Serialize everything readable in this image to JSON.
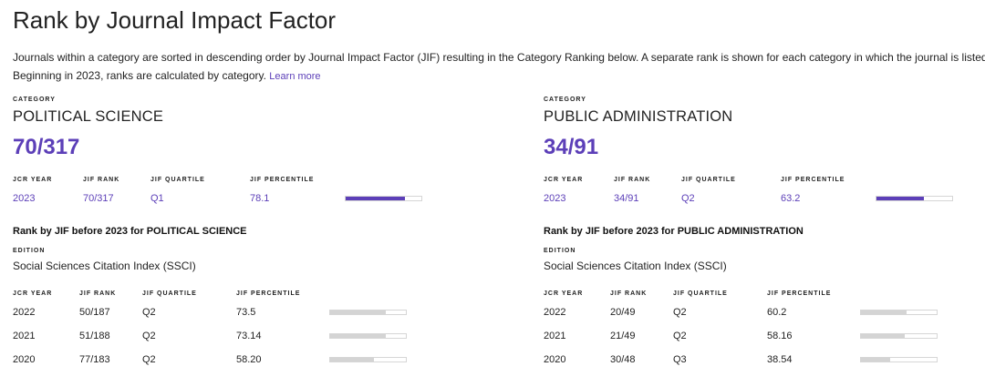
{
  "page": {
    "title": "Rank by Journal Impact Factor",
    "intro_line1": "Journals within a category are sorted in descending order by Journal Impact Factor (JIF) resulting in the Category Ranking below. A separate rank is shown for each category in which the journal is listed in J",
    "intro_line2": "Beginning in 2023, ranks are calculated by category.",
    "learn_more": "Learn more"
  },
  "labels": {
    "category": "CATEGORY",
    "jcr_year": "JCR YEAR",
    "jif_rank": "JIF RANK",
    "jif_quartile": "JIF QUARTILE",
    "jif_percentile": "JIF PERCENTILE",
    "edition": "EDITION"
  },
  "categories": [
    {
      "name": "POLITICAL SCIENCE",
      "rank": "70/317",
      "current": {
        "year": "2023",
        "rank": "70/317",
        "quartile": "Q1",
        "percentile": "78.1",
        "percentile_value": 78.1
      },
      "history_title": "Rank by JIF before 2023 for POLITICAL SCIENCE",
      "edition": "Social Sciences Citation Index (SSCI)",
      "history": [
        {
          "year": "2022",
          "rank": "50/187",
          "quartile": "Q2",
          "percentile": "73.5",
          "percentile_value": 73.5
        },
        {
          "year": "2021",
          "rank": "51/188",
          "quartile": "Q2",
          "percentile": "73.14",
          "percentile_value": 73.14
        },
        {
          "year": "2020",
          "rank": "77/183",
          "quartile": "Q2",
          "percentile": "58.20",
          "percentile_value": 58.2
        }
      ]
    },
    {
      "name": "PUBLIC ADMINISTRATION",
      "rank": "34/91",
      "current": {
        "year": "2023",
        "rank": "34/91",
        "quartile": "Q2",
        "percentile": "63.2",
        "percentile_value": 63.2
      },
      "history_title": "Rank by JIF before 2023 for PUBLIC ADMINISTRATION",
      "edition": "Social Sciences Citation Index (SSCI)",
      "history": [
        {
          "year": "2022",
          "rank": "20/49",
          "quartile": "Q2",
          "percentile": "60.2",
          "percentile_value": 60.2
        },
        {
          "year": "2021",
          "rank": "21/49",
          "quartile": "Q2",
          "percentile": "58.16",
          "percentile_value": 58.16
        },
        {
          "year": "2020",
          "rank": "30/48",
          "quartile": "Q3",
          "percentile": "38.54",
          "percentile_value": 38.54
        }
      ]
    }
  ],
  "colors": {
    "accent": "#5c3fb8",
    "bar_track": "#ffffff",
    "bar_history": "#d4d4d4"
  }
}
